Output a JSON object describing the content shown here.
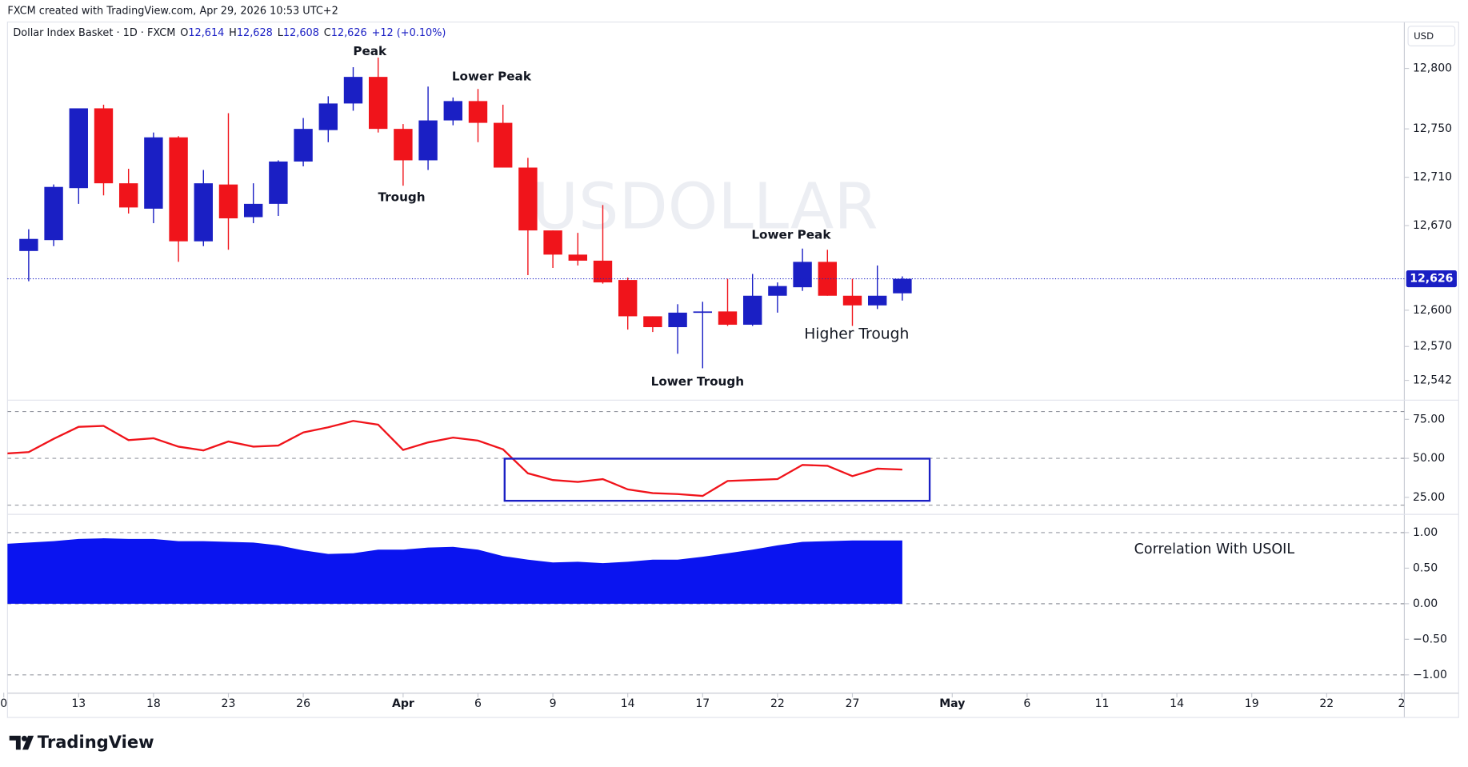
{
  "header": {
    "credit": "FXCM created with TradingView.com, Apr 29, 2026 10:53 UTC+2"
  },
  "footer": {
    "brand": "TradingView"
  },
  "chart_data": [
    {
      "type": "candlestick",
      "title": "Dollar Index Basket · 1D · FXCM",
      "ohlc_legend": [
        {
          "key": "O",
          "text": "12,614"
        },
        {
          "key": "H",
          "text": "12,628"
        },
        {
          "key": "L",
          "text": "12,608"
        },
        {
          "key": "C",
          "text": "12,626"
        }
      ],
      "change": "+12 (+0.10%)",
      "currency": "USD",
      "watermark": "USDOLLAR",
      "price_label": "12,626",
      "annotations": [
        "Peak",
        "Lower Peak",
        "Trough",
        "Lower Peak",
        "Higher Trough",
        "Lower Trough"
      ],
      "up_color": "#1a1fc4",
      "down_color": "#f0141b",
      "x": [
        1,
        2,
        3,
        4,
        5,
        6,
        7,
        8,
        9,
        10,
        11,
        12,
        13,
        14,
        15,
        16,
        17,
        18,
        19,
        20,
        21,
        22,
        23,
        24,
        25,
        26,
        27,
        28,
        29,
        30,
        31,
        32,
        33,
        34,
        35,
        36
      ],
      "open": [
        12649,
        12658,
        12701,
        12767,
        12705,
        12684,
        12743,
        12657,
        12704,
        12677,
        12688,
        12723,
        12749,
        12771,
        12793,
        12750,
        12724,
        12757,
        12773,
        12755,
        12718,
        12666,
        12646,
        12641,
        12625,
        12595,
        12586,
        12598,
        12599,
        12588,
        12612,
        12619,
        12640,
        12612,
        12604,
        12614
      ],
      "high": [
        12667,
        12704,
        12767,
        12770,
        12717,
        12747,
        12744,
        12716,
        12763,
        12705,
        12724,
        12759,
        12777,
        12801,
        12809,
        12754,
        12785,
        12776,
        12783,
        12770,
        12726,
        12666,
        12664,
        12687,
        12627,
        12595,
        12605,
        12607,
        12626,
        12630,
        12623,
        12651,
        12650,
        12626,
        12637,
        12628
      ],
      "low": [
        12624,
        12653,
        12688,
        12695,
        12680,
        12672,
        12640,
        12653,
        12650,
        12672,
        12678,
        12719,
        12739,
        12765,
        12747,
        12703,
        12716,
        12753,
        12739,
        12718,
        12629,
        12635,
        12637,
        12622,
        12584,
        12582,
        12564,
        12552,
        12587,
        12587,
        12598,
        12616,
        12612,
        12587,
        12601,
        12608
      ],
      "close": [
        12659,
        12702,
        12767,
        12705,
        12685,
        12743,
        12657,
        12705,
        12676,
        12688,
        12723,
        12750,
        12771,
        12793,
        12750,
        12724,
        12757,
        12773,
        12755,
        12718,
        12666,
        12646,
        12641,
        12623,
        12595,
        12586,
        12598,
        12599,
        12588,
        12612,
        12620,
        12640,
        12612,
        12604,
        12612,
        12626
      ],
      "xlim": [
        0,
        56
      ],
      "xticks": [
        {
          "value": 0,
          "label": "0"
        },
        {
          "value": 3,
          "label": "13"
        },
        {
          "value": 6,
          "label": "18"
        },
        {
          "value": 9,
          "label": "23"
        },
        {
          "value": 12,
          "label": "26"
        },
        {
          "value": 16,
          "label": "Apr"
        },
        {
          "value": 19,
          "label": "6"
        },
        {
          "value": 22,
          "label": "9"
        },
        {
          "value": 25,
          "label": "14"
        },
        {
          "value": 28,
          "label": "17"
        },
        {
          "value": 31,
          "label": "22"
        },
        {
          "value": 34,
          "label": "27"
        },
        {
          "value": 38,
          "label": "May"
        },
        {
          "value": 41,
          "label": "6"
        },
        {
          "value": 44,
          "label": "11"
        },
        {
          "value": 47,
          "label": "14"
        },
        {
          "value": 50,
          "label": "19"
        },
        {
          "value": 53,
          "label": "22"
        },
        {
          "value": 56,
          "label": "2"
        }
      ],
      "ylim": [
        12526,
        12838
      ],
      "yticks": [
        {
          "value": 12800,
          "label": "12,800"
        },
        {
          "value": 12750,
          "label": "12,750"
        },
        {
          "value": 12710,
          "label": "12,710"
        },
        {
          "value": 12670,
          "label": "12,670"
        },
        {
          "value": 12600,
          "label": "12,600"
        },
        {
          "value": 12570,
          "label": "12,570"
        },
        {
          "value": 12542,
          "label": "12,542"
        }
      ]
    },
    {
      "type": "line",
      "color": "#f0141b",
      "x": [
        0,
        1,
        2,
        3,
        4,
        5,
        6,
        7,
        8,
        9,
        10,
        11,
        12,
        13,
        14,
        15,
        16,
        17,
        18,
        19,
        20,
        21,
        22,
        23,
        24,
        25,
        26,
        27,
        28,
        29,
        30,
        31,
        32,
        33,
        34,
        35,
        36
      ],
      "values": [
        53,
        54,
        62.5,
        70.2,
        70.8,
        61.7,
        62.9,
        57.5,
        55.1,
        60.8,
        57.5,
        58.2,
        66.6,
        69.9,
        74,
        71.6,
        55.4,
        60.2,
        63.3,
        61.4,
        55.8,
        40.4,
        36.1,
        34.9,
        36.7,
        30.1,
        27.7,
        27.1,
        25.9,
        35.5,
        36.1,
        36.7,
        45.8,
        45.2,
        38.6,
        43.4,
        42.8
      ],
      "levels": [
        80,
        50,
        20
      ],
      "ylim": [
        15,
        87
      ],
      "yticks": [
        {
          "value": 75,
          "label": "75.00"
        },
        {
          "value": 50,
          "label": "50.00"
        },
        {
          "value": 25,
          "label": "25.00"
        }
      ]
    },
    {
      "type": "area",
      "label": "Correlation With USOIL",
      "color": "#0a14f0",
      "x": [
        0,
        1,
        2,
        3,
        4,
        5,
        6,
        7,
        8,
        9,
        10,
        11,
        12,
        13,
        14,
        15,
        16,
        17,
        18,
        19,
        20,
        21,
        22,
        23,
        24,
        25,
        26,
        27,
        28,
        29,
        30,
        31,
        32,
        33,
        34,
        35,
        36
      ],
      "values": [
        0.84,
        0.86,
        0.88,
        0.91,
        0.92,
        0.91,
        0.91,
        0.88,
        0.88,
        0.87,
        0.86,
        0.82,
        0.75,
        0.7,
        0.71,
        0.76,
        0.76,
        0.79,
        0.8,
        0.76,
        0.67,
        0.62,
        0.58,
        0.59,
        0.57,
        0.59,
        0.62,
        0.62,
        0.66,
        0.71,
        0.76,
        0.82,
        0.87,
        0.88,
        0.89,
        0.89,
        0.89
      ],
      "levels": [
        1,
        0,
        -1
      ],
      "ylim": [
        -1.25,
        1.25
      ],
      "yticks": [
        {
          "value": 1,
          "label": "1.00"
        },
        {
          "value": 0.5,
          "label": "0.50"
        },
        {
          "value": 0,
          "label": "0.00"
        },
        {
          "value": -0.5,
          "label": "−0.50"
        },
        {
          "value": -1,
          "label": "−1.00"
        }
      ]
    }
  ]
}
